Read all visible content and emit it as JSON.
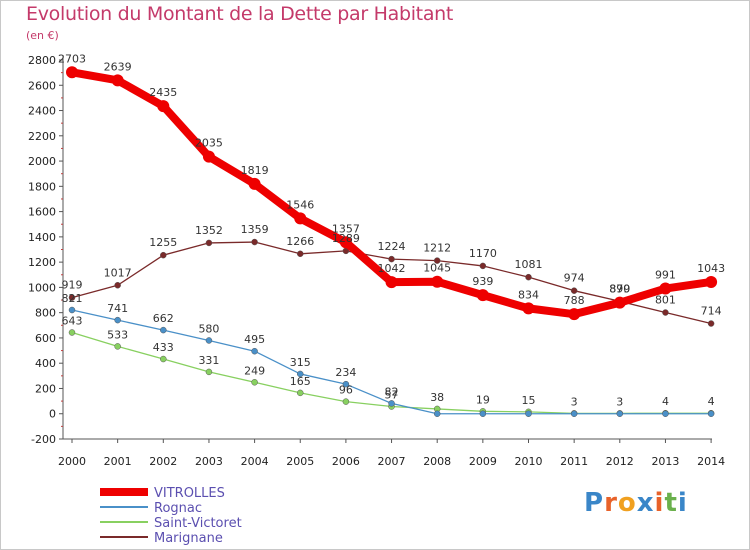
{
  "header": {
    "title": "Evolution du Montant de la Dette par Habitant",
    "unit": "(en €)"
  },
  "logo": {
    "text": "Proxiti",
    "colors": [
      "#3a86c8",
      "#e8622a",
      "#f0a020",
      "#3a86c8",
      "#e8622a",
      "#6ab04c",
      "#3a86c8"
    ]
  },
  "chart_data": {
    "type": "line",
    "title": "Evolution du Montant de la Dette par Habitant",
    "ylabel": "(en €)",
    "xlabel": "",
    "x": [
      2000,
      2001,
      2002,
      2003,
      2004,
      2005,
      2006,
      2007,
      2008,
      2009,
      2010,
      2011,
      2012,
      2013,
      2014
    ],
    "ylim": [
      -200,
      2800
    ],
    "yticks": [
      -200,
      0,
      200,
      400,
      600,
      800,
      1000,
      1200,
      1400,
      1600,
      1800,
      2000,
      2200,
      2400,
      2600,
      2800
    ],
    "grid": false,
    "legend": "bottom-left",
    "series": [
      {
        "name": "VITROLLES",
        "color": "#ee0000",
        "values": [
          2703,
          2639,
          2435,
          2035,
          1819,
          1546,
          1357,
          1042,
          1045,
          939,
          834,
          788,
          879,
          991,
          1043
        ]
      },
      {
        "name": "Rognac",
        "color": "#4a90c8",
        "values": [
          821,
          741,
          662,
          580,
          495,
          315,
          234,
          82,
          0,
          0,
          0,
          0,
          0,
          0,
          0
        ]
      },
      {
        "name": "Saint-Victoret",
        "color": "#88d060",
        "values": [
          643,
          533,
          433,
          331,
          249,
          165,
          96,
          57,
          38,
          19,
          15,
          3,
          3,
          4,
          4
        ]
      },
      {
        "name": "Marignane",
        "color": "#7a2a2a",
        "values": [
          919,
          1017,
          1255,
          1352,
          1359,
          1266,
          1289,
          1224,
          1212,
          1170,
          1081,
          974,
          890,
          801,
          714
        ]
      }
    ],
    "data_labels": {
      "VITROLLES": [
        "2703",
        "2639",
        "2435",
        "2035",
        "1819",
        "1546",
        "1357",
        "1042",
        "1045",
        "939",
        "834",
        "788",
        "879",
        "991",
        "1043"
      ],
      "Rognac": [
        "821",
        "741",
        "662",
        "580",
        "495",
        "315",
        "234",
        "82",
        "",
        "",
        "",
        "",
        "",
        "",
        ""
      ],
      "Saint-Victoret": [
        "643",
        "533",
        "433",
        "331",
        "249",
        "165",
        "96",
        "57",
        "38",
        "19",
        "15",
        "3",
        "3",
        "4",
        "4"
      ],
      "Marignane": [
        "919",
        "1017",
        "1255",
        "1352",
        "1359",
        "1266",
        "1289",
        "1224",
        "1212",
        "1170",
        "1081",
        "974",
        "890",
        "801",
        "714"
      ]
    }
  }
}
